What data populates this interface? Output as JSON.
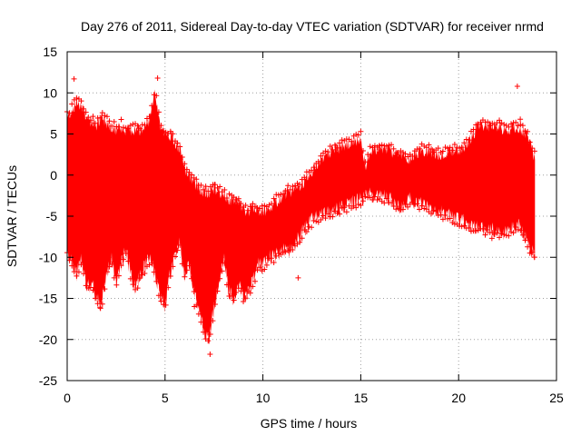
{
  "chart_data": {
    "type": "scatter",
    "title": "Day 276 of 2011, Sidereal Day-to-day VTEC variation (SDTVAR) for receiver nrmd",
    "xlabel": "GPS time / hours",
    "ylabel": "SDTVAR / TECUs",
    "xlim": [
      0,
      25
    ],
    "ylim": [
      -25,
      15
    ],
    "x_ticks": [
      0,
      5,
      10,
      15,
      20,
      25
    ],
    "y_ticks": [
      -25,
      -20,
      -15,
      -10,
      -5,
      0,
      5,
      10,
      15
    ],
    "grid": true,
    "marker": "+",
    "series": [
      {
        "name": "SDTVAR",
        "color": "#ff0000",
        "envelope_x": [
          0.0,
          0.25,
          0.5,
          0.75,
          1.0,
          1.25,
          1.5,
          1.75,
          2.0,
          2.25,
          2.5,
          2.75,
          3.0,
          3.25,
          3.5,
          3.75,
          4.0,
          4.25,
          4.5,
          4.75,
          5.0,
          5.25,
          5.5,
          5.75,
          6.0,
          6.25,
          6.5,
          6.75,
          7.0,
          7.25,
          7.5,
          7.75,
          8.0,
          8.25,
          8.5,
          8.75,
          9.0,
          9.25,
          9.5,
          9.75,
          10.0,
          10.25,
          10.5,
          10.75,
          11.0,
          11.25,
          11.5,
          11.75,
          12.0,
          12.5,
          13.0,
          13.5,
          14.0,
          14.5,
          15.0,
          15.25,
          15.5,
          16.0,
          16.5,
          17.0,
          17.5,
          18.0,
          18.5,
          19.0,
          19.5,
          20.0,
          20.5,
          21.0,
          21.5,
          22.0,
          22.5,
          23.0,
          23.5,
          23.9
        ],
        "envelope_high": [
          7,
          8,
          9,
          8.5,
          7,
          6.5,
          6,
          7,
          6.5,
          6,
          5.5,
          6,
          5.5,
          5.5,
          5.5,
          5.5,
          6,
          7,
          10,
          6,
          5,
          5,
          4,
          3,
          1,
          0,
          -1,
          -1.5,
          -2,
          -2,
          -1.5,
          -2,
          -2.5,
          -3,
          -3,
          -3.5,
          -4,
          -4.5,
          -4,
          -4,
          -4.5,
          -4,
          -3.5,
          -3,
          -2.5,
          -2,
          -2,
          -1.5,
          -1,
          0.5,
          2,
          3,
          3.5,
          4,
          4.5,
          1,
          3,
          3.5,
          3,
          2.5,
          2,
          3,
          3,
          2.5,
          3,
          3,
          4,
          6,
          6,
          6,
          5.5,
          6,
          5,
          2
        ],
        "envelope_low": [
          -9,
          -11,
          -12,
          -10,
          -14,
          -13,
          -15,
          -16,
          -12,
          -10,
          -13,
          -11,
          -9,
          -12,
          -14,
          -12,
          -11,
          -10,
          -12,
          -15,
          -16,
          -12,
          -10,
          -8,
          -12,
          -11,
          -14,
          -17,
          -19,
          -20,
          -16,
          -13,
          -10,
          -14,
          -15,
          -13,
          -15,
          -14,
          -13,
          -11,
          -11,
          -10,
          -10,
          -9.5,
          -9,
          -9,
          -9,
          -8,
          -7,
          -5.5,
          -5,
          -4.5,
          -4,
          -3.5,
          -3,
          -2.5,
          -2.5,
          -2.5,
          -3,
          -4,
          -3,
          -3.5,
          -4,
          -4.5,
          -5,
          -5.5,
          -6,
          -6.5,
          -6.5,
          -7,
          -7,
          -6,
          -8,
          -10
        ],
        "outliers": [
          {
            "x": 0.35,
            "y": 11.7
          },
          {
            "x": 4.62,
            "y": 11.8
          },
          {
            "x": 7.3,
            "y": -21.8
          },
          {
            "x": 11.8,
            "y": -12.5
          },
          {
            "x": 23.0,
            "y": 10.8
          },
          {
            "x": 23.15,
            "y": 6.8
          },
          {
            "x": 21.7,
            "y": -7.7
          },
          {
            "x": 1.7,
            "y": -16.2
          },
          {
            "x": 6.5,
            "y": -16.0
          }
        ]
      }
    ]
  }
}
